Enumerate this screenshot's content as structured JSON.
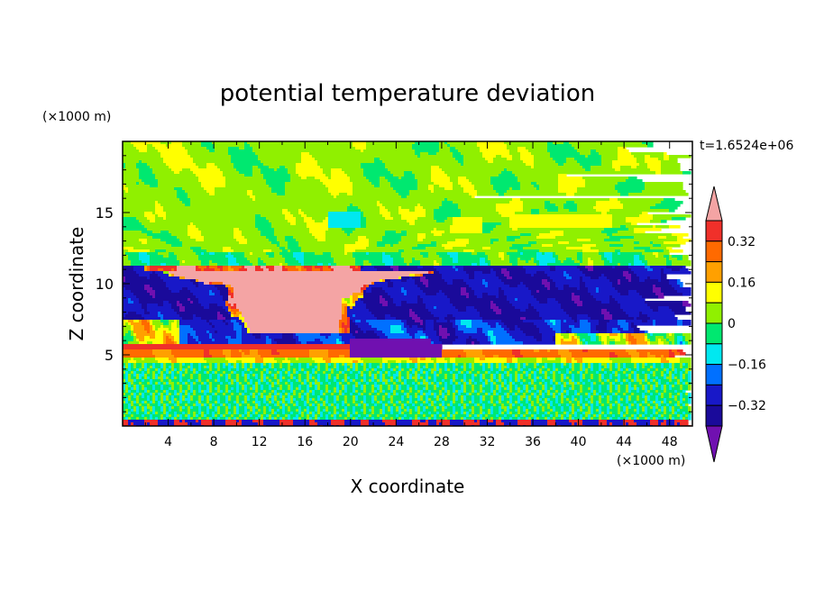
{
  "chart_data": {
    "type": "heatmap",
    "title": "potential temperature deviation",
    "xlabel": "X coordinate",
    "ylabel": "Z coordinate",
    "x_unit": "(×1000 m)",
    "y_unit": "(×1000 m)",
    "time_label": "t=1.6524e+06",
    "xlim": [
      0,
      50
    ],
    "ylim": [
      0,
      20
    ],
    "x_ticks": [
      4,
      8,
      12,
      16,
      20,
      24,
      28,
      32,
      36,
      40,
      44,
      48
    ],
    "y_ticks": [
      5,
      10,
      15
    ],
    "colorbar": {
      "levels": [
        {
          "min": 0.4,
          "max": null,
          "color": "#f4a4a4"
        },
        {
          "min": 0.32,
          "max": 0.4,
          "color": "#f0302a"
        },
        {
          "min": 0.24,
          "max": 0.32,
          "color": "#ff6a00"
        },
        {
          "min": 0.16,
          "max": 0.24,
          "color": "#ffa000"
        },
        {
          "min": 0.08,
          "max": 0.16,
          "color": "#ffff00"
        },
        {
          "min": 0.0,
          "max": 0.08,
          "color": "#90f000"
        },
        {
          "min": -0.08,
          "max": 0.0,
          "color": "#00e870"
        },
        {
          "min": -0.16,
          "max": -0.08,
          "color": "#00e8f0"
        },
        {
          "min": -0.24,
          "max": -0.16,
          "color": "#0070ff"
        },
        {
          "min": -0.32,
          "max": -0.24,
          "color": "#1818c8"
        },
        {
          "min": -0.4,
          "max": -0.32,
          "color": "#1a0a9a"
        },
        {
          "min": null,
          "max": -0.4,
          "color": "#7010b0"
        }
      ],
      "labels": [
        "0.32",
        "0.16",
        "0",
        "−0.16",
        "−0.32"
      ]
    },
    "regions": [
      {
        "name": "upper layer",
        "z": [
          11,
          20
        ],
        "value": 0.05
      },
      {
        "name": "cold layer",
        "z": [
          5.5,
          11
        ],
        "value": -0.3
      },
      {
        "name": "warm plume",
        "x": [
          9,
          21
        ],
        "z": [
          6,
          11
        ],
        "value": 0.45
      },
      {
        "name": "warm band",
        "z": [
          4.8,
          5.8
        ],
        "value": 0.35
      },
      {
        "name": "lower layer",
        "z": [
          0,
          4.5
        ],
        "value": 0.0
      }
    ]
  }
}
